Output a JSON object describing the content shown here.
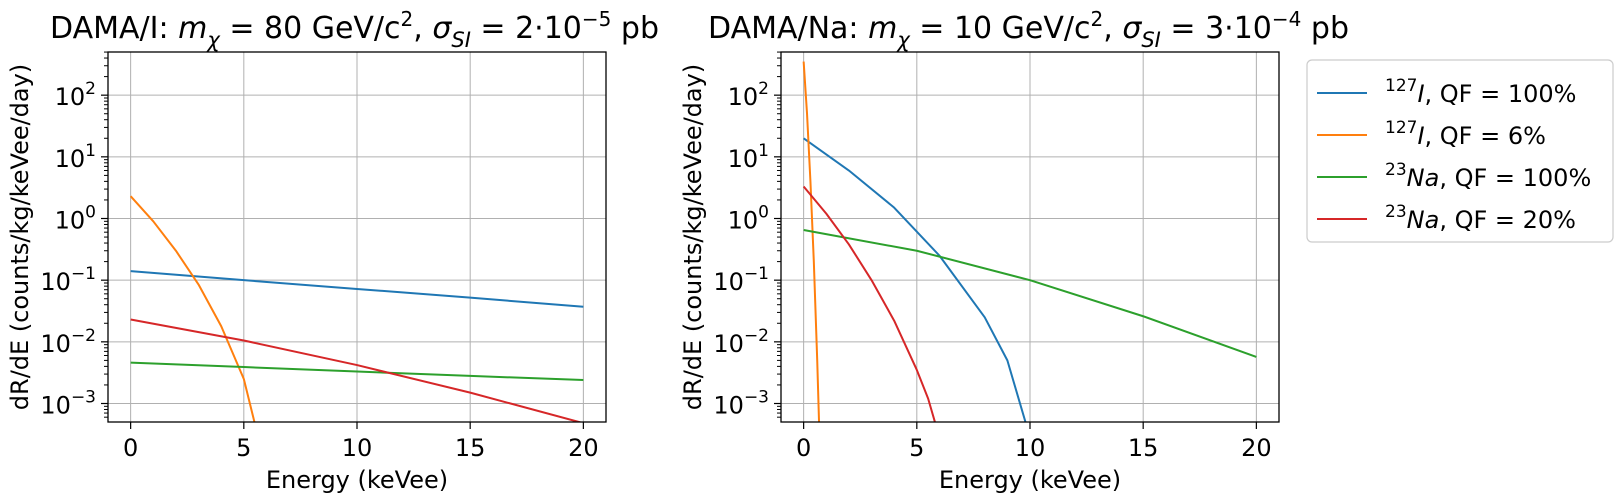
{
  "chart_data": [
    {
      "type": "line",
      "title": {
        "prefix": "DAMA/I: ",
        "m_eq": " = 80 GeV/c",
        "m_pow": "2",
        "sep": ", ",
        "s_eq": " = 2·10",
        "s_exp": "−5",
        "s_unit": " pb"
      },
      "xlabel": "Energy (keVee)",
      "ylabel": "dR/dE (counts/kg/keVee/day)",
      "xlim": [
        -1,
        21
      ],
      "ylim_log10": [
        -3.3,
        2.7
      ],
      "yscale": "log",
      "grid": true,
      "x_ticks": [
        0,
        5,
        10,
        15,
        20
      ],
      "x_tick_labels": [
        "0",
        "5",
        "10",
        "15",
        "20"
      ],
      "y_ticks_exp": [
        -3,
        -2,
        -1,
        0,
        1,
        2
      ],
      "y_tick_labels": [
        {
          "base": "10",
          "exp": "−3"
        },
        {
          "base": "10",
          "exp": "−2"
        },
        {
          "base": "10",
          "exp": "−1"
        },
        {
          "base": "10",
          "exp": "0"
        },
        {
          "base": "10",
          "exp": "1"
        },
        {
          "base": "10",
          "exp": "2"
        }
      ],
      "series": [
        {
          "name": "127I, QF = 100%",
          "color": "#1f77b4",
          "x": [
            0,
            5,
            10,
            15,
            20
          ],
          "y": [
            0.14,
            0.1,
            0.072,
            0.052,
            0.037
          ]
        },
        {
          "name": "127I, QF = 6%",
          "color": "#ff7f0e",
          "x": [
            0,
            1,
            2,
            3,
            4,
            5,
            5.5
          ],
          "y": [
            2.3,
            0.9,
            0.3,
            0.085,
            0.018,
            0.0025,
            0.00045
          ]
        },
        {
          "name": "23Na, QF = 100%",
          "color": "#2ca02c",
          "x": [
            0,
            5,
            10,
            15,
            20
          ],
          "y": [
            0.0046,
            0.0039,
            0.0033,
            0.0028,
            0.0024
          ]
        },
        {
          "name": "23Na, QF = 20%",
          "color": "#d62728",
          "x": [
            0,
            5,
            10,
            15,
            20
          ],
          "y": [
            0.023,
            0.0105,
            0.0042,
            0.0015,
            0.00048
          ]
        }
      ]
    },
    {
      "type": "line",
      "title": {
        "prefix": "DAMA/Na: ",
        "m_eq": " = 10 GeV/c",
        "m_pow": "2",
        "sep": ", ",
        "s_eq": " = 3·10",
        "s_exp": "−4",
        "s_unit": " pb"
      },
      "xlabel": "Energy (keVee)",
      "ylabel": "dR/dE (counts/kg/keVee/day)",
      "xlim": [
        -1,
        21
      ],
      "ylim_log10": [
        -3.3,
        2.7
      ],
      "yscale": "log",
      "grid": true,
      "x_ticks": [
        0,
        5,
        10,
        15,
        20
      ],
      "x_tick_labels": [
        "0",
        "5",
        "10",
        "15",
        "20"
      ],
      "y_ticks_exp": [
        -3,
        -2,
        -1,
        0,
        1,
        2
      ],
      "y_tick_labels": [
        {
          "base": "10",
          "exp": "−3"
        },
        {
          "base": "10",
          "exp": "−2"
        },
        {
          "base": "10",
          "exp": "−1"
        },
        {
          "base": "10",
          "exp": "0"
        },
        {
          "base": "10",
          "exp": "1"
        },
        {
          "base": "10",
          "exp": "2"
        }
      ],
      "series": [
        {
          "name": "127I, QF = 100%",
          "color": "#1f77b4",
          "x": [
            0,
            2,
            4,
            6,
            8,
            9,
            9.8
          ],
          "y": [
            20,
            6,
            1.5,
            0.25,
            0.025,
            0.005,
            0.0005
          ]
        },
        {
          "name": "127I, QF = 6%",
          "color": "#ff7f0e",
          "x": [
            0,
            0.15,
            0.3,
            0.45,
            0.6,
            0.68
          ],
          "y": [
            350,
            50,
            4,
            0.2,
            0.005,
            0.0005
          ]
        },
        {
          "name": "23Na, QF = 100%",
          "color": "#2ca02c",
          "x": [
            0,
            5,
            10,
            15,
            20
          ],
          "y": [
            0.65,
            0.3,
            0.1,
            0.026,
            0.0057
          ]
        },
        {
          "name": "23Na, QF = 20%",
          "color": "#d62728",
          "x": [
            0,
            1,
            2,
            3,
            4,
            5,
            5.5,
            5.8
          ],
          "y": [
            3.3,
            1.2,
            0.38,
            0.1,
            0.022,
            0.0035,
            0.0012,
            0.0005
          ]
        }
      ]
    }
  ],
  "legend": {
    "placement": "outside right of second axes, top",
    "entries": [
      {
        "iso": "127",
        "el": "I",
        "rest": ", QF = 100%",
        "color": "#1f77b4"
      },
      {
        "iso": "127",
        "el": "I",
        "rest": ", QF = 6%",
        "color": "#ff7f0e"
      },
      {
        "iso": "23",
        "el": "Na",
        "rest": ", QF = 100%",
        "color": "#2ca02c"
      },
      {
        "iso": "23",
        "el": "Na",
        "rest": ", QF = 20%",
        "color": "#d62728"
      }
    ]
  }
}
